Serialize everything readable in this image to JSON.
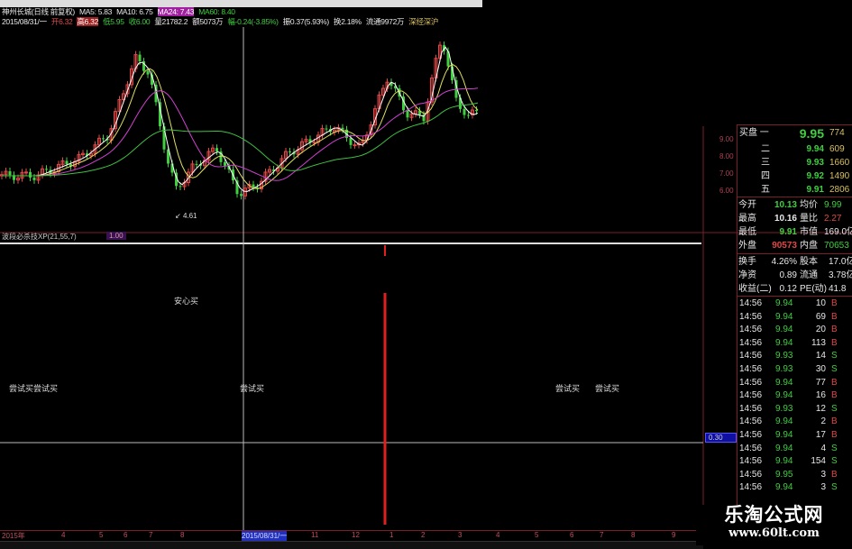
{
  "header": {
    "line1": [
      "神州长城(日线 前复权)",
      "MA5: 5.83",
      "MA10: 6.75",
      "MA24: 7.43",
      "MA60: 8.40"
    ],
    "line2": [
      "2015/08/31/一",
      "开6.32",
      "高6.32",
      "低5.95",
      "收6.00",
      "量21782.2",
      "额5073万",
      "幅-0.24(-3.85%)",
      "振0.37(5.93%)",
      "换2.18%",
      "流通9972万",
      "深经深沪"
    ]
  },
  "chart": {
    "low_marker": "4.61",
    "price_axis": [
      "9.00",
      "8.00",
      "7.00",
      "6.00"
    ]
  },
  "indicator": {
    "title": "波段必杀技XP(21,55,7)",
    "value": "1.00",
    "crosshair_value": "0.30",
    "signals": [
      {
        "text": "安心买"
      },
      {
        "text": "尝试买尝试买"
      },
      {
        "text": "尝试买"
      },
      {
        "text": "尝试买"
      },
      {
        "text": "尝试买"
      }
    ]
  },
  "quote": {
    "bids": [
      {
        "label": "买盘 一",
        "price": "9.95",
        "vol": "774"
      },
      {
        "label": "二",
        "price": "9.94",
        "vol": "609"
      },
      {
        "label": "三",
        "price": "9.93",
        "vol": "1660"
      },
      {
        "label": "四",
        "price": "9.92",
        "vol": "1490"
      },
      {
        "label": "五",
        "price": "9.91",
        "vol": "2806"
      }
    ],
    "stats": [
      {
        "k1": "今开",
        "v1": "10.13",
        "k2": "均价",
        "v2": "9.99"
      },
      {
        "k1": "最高",
        "v1": "10.16",
        "k2": "量比",
        "v2": "2.27"
      },
      {
        "k1": "最低",
        "v1": "9.91",
        "k2": "市值",
        "v2": "169.0亿"
      },
      {
        "k1": "外盘",
        "v1": "90573",
        "k2": "内盘",
        "v2": "70653"
      }
    ],
    "fund": [
      {
        "k1": "换手",
        "v1": "4.26%",
        "k2": "股本",
        "v2": "17.0亿"
      },
      {
        "k1": "净资",
        "v1": "0.89",
        "k2": "流通",
        "v2": "3.78亿"
      },
      {
        "k1": "收益(二)",
        "v1": "0.12",
        "k2": "PE(动)",
        "v2": "41.8"
      }
    ],
    "ticks": [
      {
        "t": "14:56",
        "p": "9.94",
        "v": "10",
        "s": "B"
      },
      {
        "t": "14:56",
        "p": "9.94",
        "v": "69",
        "s": "B"
      },
      {
        "t": "14:56",
        "p": "9.94",
        "v": "20",
        "s": "B"
      },
      {
        "t": "14:56",
        "p": "9.94",
        "v": "113",
        "s": "B"
      },
      {
        "t": "14:56",
        "p": "9.93",
        "v": "14",
        "s": "S"
      },
      {
        "t": "14:56",
        "p": "9.93",
        "v": "30",
        "s": "S"
      },
      {
        "t": "14:56",
        "p": "9.94",
        "v": "77",
        "s": "B"
      },
      {
        "t": "14:56",
        "p": "9.94",
        "v": "16",
        "s": "B"
      },
      {
        "t": "14:56",
        "p": "9.93",
        "v": "12",
        "s": "S"
      },
      {
        "t": "14:56",
        "p": "9.94",
        "v": "2",
        "s": "B"
      },
      {
        "t": "14:56",
        "p": "9.94",
        "v": "17",
        "s": "B"
      },
      {
        "t": "14:56",
        "p": "9.94",
        "v": "4",
        "s": "S"
      },
      {
        "t": "14:56",
        "p": "9.94",
        "v": "154",
        "s": "S"
      },
      {
        "t": "14:56",
        "p": "9.95",
        "v": "3",
        "s": "B"
      },
      {
        "t": "14:56",
        "p": "9.94",
        "v": "3",
        "s": "S"
      }
    ]
  },
  "date_axis": [
    "2015年",
    "4",
    "5",
    "6",
    "7",
    "8",
    "2015/08/31/一",
    "11",
    "12",
    "1",
    "2",
    "3",
    "4",
    "5",
    "6",
    "7",
    "8",
    "9"
  ],
  "watermark": {
    "name": "乐淘公式网",
    "url": "www.60lt.com"
  },
  "colors": {
    "up": "#e04848",
    "down": "#3fcf3f",
    "grid": "#7a1f2a",
    "ma5": "#ffffff",
    "ma10": "#e0e060",
    "ma24": "#d040d0",
    "ma60": "#40c040"
  }
}
